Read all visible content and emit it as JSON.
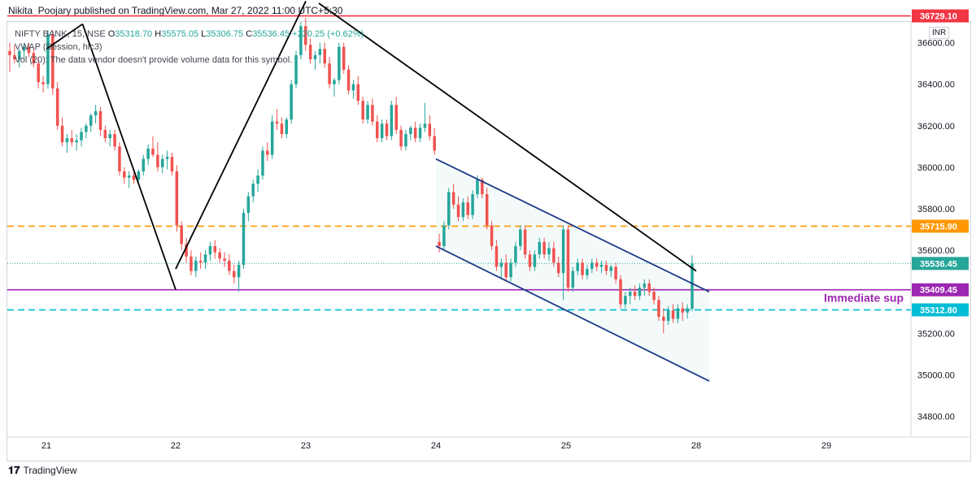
{
  "header": {
    "published": "Nikita_Poojary published on TradingView.com, Mar 27, 2022 11:00 UTC+5:30"
  },
  "legend": {
    "symbol": "NIFTY BANK, 15, NSE",
    "o_label": "O",
    "o_value": "35318.70",
    "h_label": "H",
    "h_value": "35575.05",
    "l_label": "L",
    "l_value": "35306.75",
    "c_label": "C",
    "c_value": "35536.45",
    "change": "+220.25 (+0.62%)",
    "vwap": "VWAP (Session, hlc3)",
    "vol": "Vol (20): The data vendor doesn't provide volume data for this symbol."
  },
  "currency": "INR",
  "footer": {
    "brand": "TradingView"
  },
  "annotation": {
    "text": "Immediate sup"
  },
  "colors": {
    "up": "#26a69a",
    "down": "#ef5350",
    "red_line": "#f23645",
    "orange": "#ff9800",
    "purple": "#9c27b0",
    "cyan": "#00bcd4",
    "channel": "#1e3a8a",
    "trend": "#000000",
    "current": "#26a69a"
  },
  "chart_data": {
    "type": "candlestick",
    "xlabels": [
      "21",
      "22",
      "23",
      "24",
      "25",
      "28",
      "29"
    ],
    "ylim": [
      34700,
      36700
    ],
    "yticks": [
      34800,
      35000,
      35200,
      35400,
      35600,
      35800,
      36000,
      36200,
      36400,
      36600
    ],
    "ytick_labels": [
      "34800.00",
      "35000.00",
      "35200.00",
      "35400.00",
      "35600.00",
      "35800.00",
      "36000.00",
      "36200.00",
      "36400.00",
      "36600.00"
    ],
    "price_lines": [
      {
        "name": "resistance",
        "value": 36729.1,
        "label": "36729.10",
        "color": "#f23645",
        "style": "solid"
      },
      {
        "name": "dashed-orange",
        "value": 35715.9,
        "label": "35715.90",
        "color": "#ff9800",
        "style": "dashed"
      },
      {
        "name": "current",
        "value": 35536.45,
        "label": "35536.45",
        "color": "#26a69a",
        "style": "dotted"
      },
      {
        "name": "support",
        "value": 35409.45,
        "label": "35409.45",
        "color": "#9c27b0",
        "style": "solid"
      },
      {
        "name": "dashed-cyan",
        "value": 35312.8,
        "label": "35312.80",
        "color": "#00bcd4",
        "style": "dashed"
      }
    ],
    "trend_lines": [
      {
        "name": "zigzag-1",
        "x1": 0.0,
        "y1": 36570,
        "x2": 0.28,
        "y2": 36690
      },
      {
        "name": "zigzag-2",
        "x1": 0.28,
        "y1": 36690,
        "x2": 1.0,
        "y2": 35410
      },
      {
        "name": "zigzag-3",
        "x1": 1.0,
        "y1": 35510,
        "x2": 2.0,
        "y2": 36800
      },
      {
        "name": "zigzag-4",
        "x1": 2.1,
        "y1": 36790,
        "x2": 5.0,
        "y2": 35500
      },
      {
        "name": "channel-upper",
        "x1": 3.0,
        "y1": 36040,
        "x2": 5.1,
        "y2": 35400
      },
      {
        "name": "channel-lower",
        "x1": 3.0,
        "y1": 35620,
        "x2": 5.1,
        "y2": 34970
      }
    ],
    "candles": [
      {
        "o": 36560,
        "h": 36600,
        "l": 36460,
        "c": 36540
      },
      {
        "o": 36540,
        "h": 36590,
        "l": 36500,
        "c": 36520
      },
      {
        "o": 36520,
        "h": 36570,
        "l": 36480,
        "c": 36560
      },
      {
        "o": 36560,
        "h": 36600,
        "l": 36520,
        "c": 36580
      },
      {
        "o": 36580,
        "h": 36600,
        "l": 36530,
        "c": 36550
      },
      {
        "o": 36550,
        "h": 36570,
        "l": 36480,
        "c": 36500
      },
      {
        "o": 36500,
        "h": 36530,
        "l": 36380,
        "c": 36410
      },
      {
        "o": 36410,
        "h": 36440,
        "l": 36360,
        "c": 36400
      },
      {
        "o": 36400,
        "h": 36660,
        "l": 36380,
        "c": 36640
      },
      {
        "o": 36640,
        "h": 36660,
        "l": 36350,
        "c": 36380
      },
      {
        "o": 36380,
        "h": 36410,
        "l": 36180,
        "c": 36200
      },
      {
        "o": 36200,
        "h": 36240,
        "l": 36100,
        "c": 36120
      },
      {
        "o": 36120,
        "h": 36160,
        "l": 36070,
        "c": 36140
      },
      {
        "o": 36140,
        "h": 36180,
        "l": 36100,
        "c": 36120
      },
      {
        "o": 36120,
        "h": 36160,
        "l": 36080,
        "c": 36130
      },
      {
        "o": 36130,
        "h": 36190,
        "l": 36100,
        "c": 36170
      },
      {
        "o": 36170,
        "h": 36210,
        "l": 36140,
        "c": 36200
      },
      {
        "o": 36200,
        "h": 36260,
        "l": 36170,
        "c": 36250
      },
      {
        "o": 36250,
        "h": 36300,
        "l": 36210,
        "c": 36270
      },
      {
        "o": 36270,
        "h": 36290,
        "l": 36150,
        "c": 36180
      },
      {
        "o": 36180,
        "h": 36200,
        "l": 36120,
        "c": 36140
      },
      {
        "o": 36140,
        "h": 36180,
        "l": 36100,
        "c": 36160
      },
      {
        "o": 36160,
        "h": 36180,
        "l": 36080,
        "c": 36100
      },
      {
        "o": 36100,
        "h": 36120,
        "l": 35960,
        "c": 35980
      },
      {
        "o": 35980,
        "h": 36000,
        "l": 35920,
        "c": 35950
      },
      {
        "o": 35950,
        "h": 35980,
        "l": 35900,
        "c": 35960
      },
      {
        "o": 35960,
        "h": 35990,
        "l": 35920,
        "c": 35940
      },
      {
        "o": 35940,
        "h": 35990,
        "l": 35930,
        "c": 35980
      },
      {
        "o": 35980,
        "h": 36060,
        "l": 35960,
        "c": 36040
      },
      {
        "o": 36040,
        "h": 36110,
        "l": 36010,
        "c": 36090
      },
      {
        "o": 36090,
        "h": 36150,
        "l": 36050,
        "c": 36060
      },
      {
        "o": 36060,
        "h": 36120,
        "l": 35980,
        "c": 36000
      },
      {
        "o": 36000,
        "h": 36060,
        "l": 35970,
        "c": 36040
      },
      {
        "o": 36040,
        "h": 36080,
        "l": 35990,
        "c": 36050
      },
      {
        "o": 36050,
        "h": 36070,
        "l": 35960,
        "c": 35980
      },
      {
        "o": 35980,
        "h": 36010,
        "l": 35690,
        "c": 35720
      },
      {
        "o": 35720,
        "h": 35740,
        "l": 35600,
        "c": 35630
      },
      {
        "o": 35630,
        "h": 35660,
        "l": 35540,
        "c": 35570
      },
      {
        "o": 35570,
        "h": 35600,
        "l": 35480,
        "c": 35500
      },
      {
        "o": 35500,
        "h": 35570,
        "l": 35470,
        "c": 35550
      },
      {
        "o": 35550,
        "h": 35590,
        "l": 35510,
        "c": 35540
      },
      {
        "o": 35540,
        "h": 35600,
        "l": 35510,
        "c": 35580
      },
      {
        "o": 35580,
        "h": 35640,
        "l": 35550,
        "c": 35620
      },
      {
        "o": 35620,
        "h": 35650,
        "l": 35560,
        "c": 35590
      },
      {
        "o": 35590,
        "h": 35610,
        "l": 35540,
        "c": 35560
      },
      {
        "o": 35560,
        "h": 35590,
        "l": 35520,
        "c": 35550
      },
      {
        "o": 35550,
        "h": 35580,
        "l": 35480,
        "c": 35500
      },
      {
        "o": 35500,
        "h": 35530,
        "l": 35440,
        "c": 35470
      },
      {
        "o": 35470,
        "h": 35550,
        "l": 35400,
        "c": 35530
      },
      {
        "o": 35530,
        "h": 35800,
        "l": 35510,
        "c": 35780
      },
      {
        "o": 35780,
        "h": 35880,
        "l": 35740,
        "c": 35860
      },
      {
        "o": 35860,
        "h": 35940,
        "l": 35830,
        "c": 35920
      },
      {
        "o": 35920,
        "h": 35990,
        "l": 35880,
        "c": 35960
      },
      {
        "o": 35960,
        "h": 36100,
        "l": 35940,
        "c": 36080
      },
      {
        "o": 36080,
        "h": 36120,
        "l": 36030,
        "c": 36060
      },
      {
        "o": 36060,
        "h": 36250,
        "l": 36040,
        "c": 36220
      },
      {
        "o": 36220,
        "h": 36280,
        "l": 36180,
        "c": 36210
      },
      {
        "o": 36210,
        "h": 36240,
        "l": 36140,
        "c": 36160
      },
      {
        "o": 36160,
        "h": 36240,
        "l": 36140,
        "c": 36230
      },
      {
        "o": 36230,
        "h": 36420,
        "l": 36210,
        "c": 36400
      },
      {
        "o": 36400,
        "h": 36560,
        "l": 36380,
        "c": 36540
      },
      {
        "o": 36540,
        "h": 36700,
        "l": 36520,
        "c": 36680
      },
      {
        "o": 36680,
        "h": 36720,
        "l": 36560,
        "c": 36590
      },
      {
        "o": 36590,
        "h": 36620,
        "l": 36500,
        "c": 36520
      },
      {
        "o": 36520,
        "h": 36560,
        "l": 36470,
        "c": 36540
      },
      {
        "o": 36540,
        "h": 36600,
        "l": 36500,
        "c": 36570
      },
      {
        "o": 36570,
        "h": 36600,
        "l": 36480,
        "c": 36500
      },
      {
        "o": 36500,
        "h": 36530,
        "l": 36380,
        "c": 36400
      },
      {
        "o": 36400,
        "h": 36430,
        "l": 36340,
        "c": 36420
      },
      {
        "o": 36420,
        "h": 36600,
        "l": 36400,
        "c": 36580
      },
      {
        "o": 36580,
        "h": 36600,
        "l": 36450,
        "c": 36470
      },
      {
        "o": 36470,
        "h": 36490,
        "l": 36350,
        "c": 36370
      },
      {
        "o": 36370,
        "h": 36420,
        "l": 36330,
        "c": 36400
      },
      {
        "o": 36400,
        "h": 36440,
        "l": 36300,
        "c": 36320
      },
      {
        "o": 36320,
        "h": 36340,
        "l": 36210,
        "c": 36230
      },
      {
        "o": 36230,
        "h": 36320,
        "l": 36210,
        "c": 36300
      },
      {
        "o": 36300,
        "h": 36330,
        "l": 36200,
        "c": 36220
      },
      {
        "o": 36220,
        "h": 36250,
        "l": 36120,
        "c": 36140
      },
      {
        "o": 36140,
        "h": 36230,
        "l": 36120,
        "c": 36210
      },
      {
        "o": 36210,
        "h": 36230,
        "l": 36130,
        "c": 36150
      },
      {
        "o": 36150,
        "h": 36320,
        "l": 36130,
        "c": 36300
      },
      {
        "o": 36300,
        "h": 36340,
        "l": 36160,
        "c": 36180
      },
      {
        "o": 36180,
        "h": 36200,
        "l": 36080,
        "c": 36100
      },
      {
        "o": 36100,
        "h": 36180,
        "l": 36080,
        "c": 36160
      },
      {
        "o": 36160,
        "h": 36200,
        "l": 36130,
        "c": 36190
      },
      {
        "o": 36190,
        "h": 36220,
        "l": 36120,
        "c": 36140
      },
      {
        "o": 36140,
        "h": 36210,
        "l": 36120,
        "c": 36190
      },
      {
        "o": 36190,
        "h": 36310,
        "l": 36170,
        "c": 36210
      },
      {
        "o": 36210,
        "h": 36250,
        "l": 36130,
        "c": 36150
      },
      {
        "o": 36150,
        "h": 36190,
        "l": 36060,
        "c": 36080
      },
      {
        "o": 35640,
        "h": 35680,
        "l": 35590,
        "c": 35620
      },
      {
        "o": 35620,
        "h": 35740,
        "l": 35600,
        "c": 35720
      },
      {
        "o": 35720,
        "h": 35900,
        "l": 35700,
        "c": 35880
      },
      {
        "o": 35880,
        "h": 35920,
        "l": 35800,
        "c": 35820
      },
      {
        "o": 35820,
        "h": 35860,
        "l": 35740,
        "c": 35760
      },
      {
        "o": 35760,
        "h": 35850,
        "l": 35740,
        "c": 35830
      },
      {
        "o": 35830,
        "h": 35860,
        "l": 35750,
        "c": 35770
      },
      {
        "o": 35770,
        "h": 35890,
        "l": 35750,
        "c": 35870
      },
      {
        "o": 35870,
        "h": 35960,
        "l": 35850,
        "c": 35940
      },
      {
        "o": 35940,
        "h": 35950,
        "l": 35850,
        "c": 35870
      },
      {
        "o": 35870,
        "h": 35900,
        "l": 35700,
        "c": 35720
      },
      {
        "o": 35720,
        "h": 35740,
        "l": 35600,
        "c": 35620
      },
      {
        "o": 35620,
        "h": 35650,
        "l": 35500,
        "c": 35520
      },
      {
        "o": 35520,
        "h": 35560,
        "l": 35460,
        "c": 35540
      },
      {
        "o": 35540,
        "h": 35580,
        "l": 35450,
        "c": 35470
      },
      {
        "o": 35470,
        "h": 35560,
        "l": 35450,
        "c": 35540
      },
      {
        "o": 35540,
        "h": 35640,
        "l": 35520,
        "c": 35620
      },
      {
        "o": 35620,
        "h": 35720,
        "l": 35600,
        "c": 35700
      },
      {
        "o": 35700,
        "h": 35720,
        "l": 35560,
        "c": 35580
      },
      {
        "o": 35580,
        "h": 35600,
        "l": 35500,
        "c": 35520
      },
      {
        "o": 35520,
        "h": 35600,
        "l": 35500,
        "c": 35580
      },
      {
        "o": 35580,
        "h": 35660,
        "l": 35560,
        "c": 35640
      },
      {
        "o": 35640,
        "h": 35660,
        "l": 35560,
        "c": 35580
      },
      {
        "o": 35580,
        "h": 35640,
        "l": 35550,
        "c": 35610
      },
      {
        "o": 35610,
        "h": 35640,
        "l": 35520,
        "c": 35540
      },
      {
        "o": 35540,
        "h": 35570,
        "l": 35470,
        "c": 35490
      },
      {
        "o": 35490,
        "h": 35720,
        "l": 35360,
        "c": 35700
      },
      {
        "o": 35700,
        "h": 35720,
        "l": 35400,
        "c": 35420
      },
      {
        "o": 35420,
        "h": 35520,
        "l": 35400,
        "c": 35500
      },
      {
        "o": 35500,
        "h": 35560,
        "l": 35480,
        "c": 35540
      },
      {
        "o": 35540,
        "h": 35560,
        "l": 35460,
        "c": 35480
      },
      {
        "o": 35480,
        "h": 35530,
        "l": 35460,
        "c": 35510
      },
      {
        "o": 35510,
        "h": 35560,
        "l": 35490,
        "c": 35540
      },
      {
        "o": 35540,
        "h": 35560,
        "l": 35500,
        "c": 35520
      },
      {
        "o": 35520,
        "h": 35550,
        "l": 35490,
        "c": 35530
      },
      {
        "o": 35530,
        "h": 35550,
        "l": 35480,
        "c": 35500
      },
      {
        "o": 35500,
        "h": 35530,
        "l": 35470,
        "c": 35520
      },
      {
        "o": 35520,
        "h": 35540,
        "l": 35440,
        "c": 35460
      },
      {
        "o": 35460,
        "h": 35480,
        "l": 35320,
        "c": 35340
      },
      {
        "o": 35340,
        "h": 35400,
        "l": 35320,
        "c": 35380
      },
      {
        "o": 35380,
        "h": 35420,
        "l": 35340,
        "c": 35400
      },
      {
        "o": 35400,
        "h": 35430,
        "l": 35360,
        "c": 35380
      },
      {
        "o": 35380,
        "h": 35440,
        "l": 35360,
        "c": 35420
      },
      {
        "o": 35420,
        "h": 35460,
        "l": 35380,
        "c": 35440
      },
      {
        "o": 35440,
        "h": 35460,
        "l": 35380,
        "c": 35400
      },
      {
        "o": 35400,
        "h": 35420,
        "l": 35340,
        "c": 35360
      },
      {
        "o": 35360,
        "h": 35380,
        "l": 35260,
        "c": 35280
      },
      {
        "o": 35280,
        "h": 35320,
        "l": 35200,
        "c": 35260
      },
      {
        "o": 35260,
        "h": 35330,
        "l": 35240,
        "c": 35310
      },
      {
        "o": 35310,
        "h": 35340,
        "l": 35250,
        "c": 35270
      },
      {
        "o": 35270,
        "h": 35340,
        "l": 35250,
        "c": 35320
      },
      {
        "o": 35320,
        "h": 35350,
        "l": 35260,
        "c": 35300
      },
      {
        "o": 35300,
        "h": 35340,
        "l": 35270,
        "c": 35320
      },
      {
        "o": 35318,
        "h": 35575,
        "l": 35306,
        "c": 35536
      }
    ]
  }
}
